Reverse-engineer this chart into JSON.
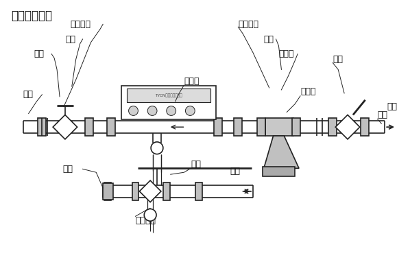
{
  "bg_color": "#ffffff",
  "line_color": "#222222",
  "text_color": "#111111",
  "title": "安装示意图：",
  "title_fontsize": 12,
  "label_fontsize": 9,
  "labels": {
    "huojie_lm_left": "活接螺母",
    "jieguan_left": "接管",
    "qiufa_left": "球阀",
    "guandao_left": "管道",
    "renengbiao": "热能表",
    "huojie_lm_right": "活接螺母",
    "jieguan_right": "接管",
    "guolv": "过滤器",
    "qiufa_right": "球阀",
    "jinshui": "进水",
    "guandao_right": "管道",
    "lianjies": "连接丝",
    "guandao_bot": "管道",
    "huishui": "回水",
    "guandao_bot2": "管道",
    "cewenqiufa": "测温球阀"
  }
}
